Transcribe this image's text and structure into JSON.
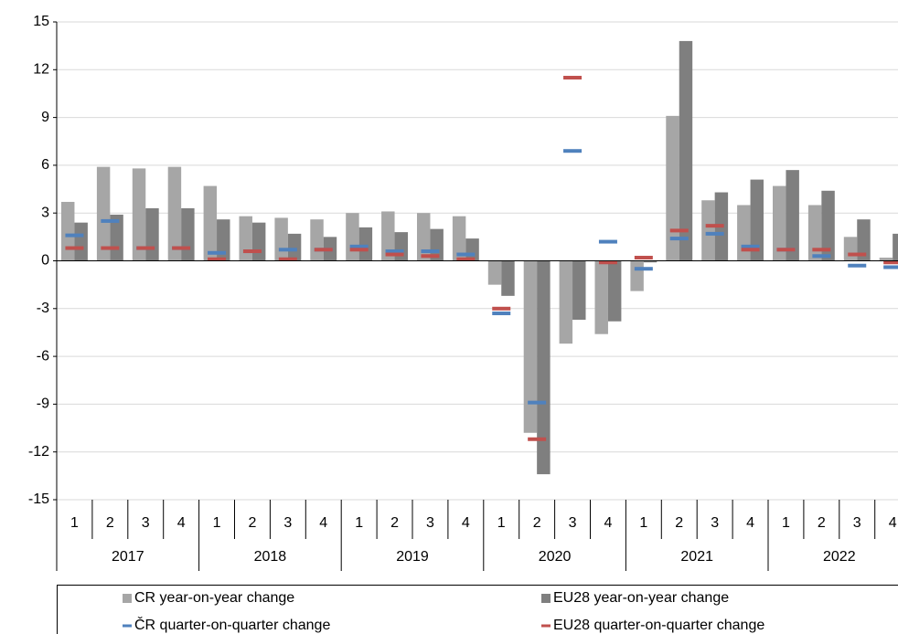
{
  "chart_data": {
    "type": "bar",
    "categories": [
      "1",
      "2",
      "3",
      "4",
      "1",
      "2",
      "3",
      "4",
      "1",
      "2",
      "3",
      "4",
      "1",
      "2",
      "3",
      "4",
      "1",
      "2",
      "3",
      "4",
      "1",
      "2",
      "3",
      "4"
    ],
    "groups": [
      "2017",
      "2018",
      "2019",
      "2020",
      "2021",
      "2022"
    ],
    "series": [
      {
        "name": "CR year-on-year change",
        "color": "#a6a6a6",
        "kind": "bar",
        "values": [
          3.7,
          5.9,
          5.8,
          5.9,
          4.7,
          2.8,
          2.7,
          2.6,
          3.0,
          3.1,
          3.0,
          2.8,
          -1.5,
          -10.8,
          -5.2,
          -4.6,
          -1.9,
          9.1,
          3.8,
          3.5,
          4.7,
          3.5,
          1.5,
          0.2
        ]
      },
      {
        "name": "EU28 year-on-year change",
        "color": "#7f7f7f",
        "kind": "bar",
        "values": [
          2.4,
          2.9,
          3.3,
          3.3,
          2.6,
          2.4,
          1.7,
          1.5,
          2.1,
          1.8,
          2.0,
          1.4,
          -2.2,
          -13.4,
          -3.7,
          -3.8,
          -0.1,
          13.8,
          4.3,
          5.1,
          5.7,
          4.4,
          2.6,
          1.7
        ]
      },
      {
        "name": "ČR quarter-on-quarter change",
        "color": "#4f81bd",
        "kind": "dash",
        "values": [
          1.6,
          2.5,
          0.8,
          0.8,
          0.5,
          0.6,
          0.7,
          0.7,
          0.9,
          0.6,
          0.6,
          0.4,
          -3.3,
          -8.9,
          6.9,
          1.2,
          -0.5,
          1.4,
          1.7,
          0.9,
          0.7,
          0.3,
          -0.3,
          -0.4
        ]
      },
      {
        "name": "EU28 quarter-on-quarter change",
        "color": "#c0504d",
        "kind": "dash",
        "values": [
          0.8,
          0.8,
          0.8,
          0.8,
          0.1,
          0.6,
          0.1,
          0.7,
          0.7,
          0.4,
          0.3,
          0.1,
          -3.0,
          -11.2,
          11.5,
          -0.1,
          0.2,
          1.9,
          2.2,
          0.7,
          0.7,
          0.7,
          0.4,
          -0.1
        ]
      }
    ],
    "ylim": [
      -15,
      15
    ],
    "yticks": [
      -15,
      -12,
      -9,
      -6,
      -3,
      0,
      3,
      6,
      9,
      12,
      15
    ],
    "grid": true
  }
}
